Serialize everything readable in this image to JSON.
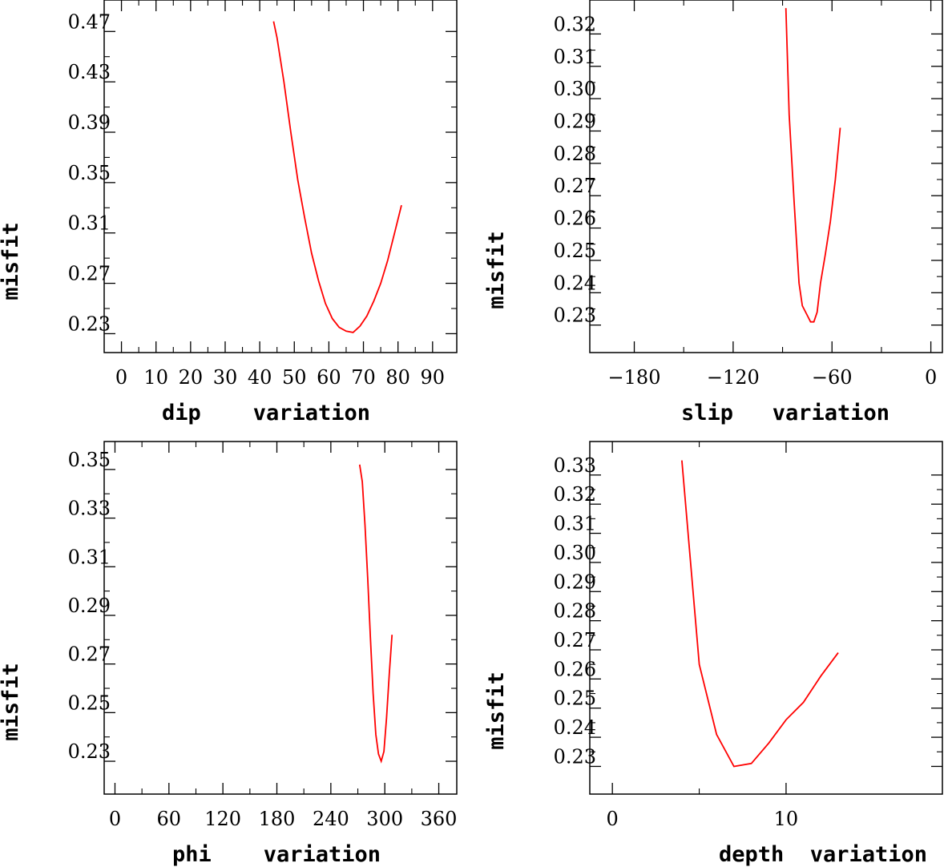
{
  "chart_data": [
    {
      "type": "line",
      "xlabel": "dip    variation",
      "ylabel": "misfit",
      "xlim": [
        -5,
        97
      ],
      "ylim": [
        0.215,
        0.495
      ],
      "x_ticks": [
        0,
        10,
        20,
        30,
        40,
        50,
        60,
        70,
        80,
        90
      ],
      "y_ticks": [
        0.23,
        0.27,
        0.31,
        0.35,
        0.39,
        0.43,
        0.47
      ],
      "y_tick_labels": [
        "0.23",
        "0.27",
        "0.31",
        "0.35",
        "0.39",
        "0.43",
        "0.47"
      ],
      "series": [
        {
          "color": "#ff0000",
          "x": [
            44,
            45,
            47,
            49,
            51,
            53,
            55,
            57,
            59,
            61,
            63,
            65,
            67,
            69,
            71,
            73,
            75,
            77,
            79,
            81
          ],
          "y": [
            0.478,
            0.465,
            0.43,
            0.39,
            0.352,
            0.322,
            0.294,
            0.272,
            0.254,
            0.242,
            0.235,
            0.232,
            0.231,
            0.236,
            0.244,
            0.256,
            0.27,
            0.288,
            0.31,
            0.332
          ]
        }
      ]
    },
    {
      "type": "line",
      "xlabel": "slip   variation",
      "ylabel": "misfit",
      "xlim": [
        -207,
        7
      ],
      "ylim": [
        0.2215,
        0.3305
      ],
      "x_ticks": [
        -180,
        -120,
        -60,
        0
      ],
      "x_tick_labels": [
        "−180",
        "−120",
        "−60",
        "0"
      ],
      "y_ticks": [
        0.23,
        0.24,
        0.25,
        0.26,
        0.27,
        0.28,
        0.29,
        0.3,
        0.31,
        0.32
      ],
      "y_tick_labels": [
        "0.23",
        "0.24",
        "0.25",
        "0.26",
        "0.27",
        "0.28",
        "0.29",
        "0.30",
        "0.31",
        "0.32"
      ],
      "series": [
        {
          "color": "#ff0000",
          "x": [
            -88,
            -86,
            -83,
            -80,
            -78,
            -75,
            -73,
            -71,
            -69,
            -67,
            -64,
            -61,
            -58,
            -55
          ],
          "y": [
            0.328,
            0.295,
            0.268,
            0.243,
            0.236,
            0.233,
            0.231,
            0.231,
            0.234,
            0.243,
            0.252,
            0.262,
            0.275,
            0.291
          ]
        }
      ]
    },
    {
      "type": "line",
      "xlabel": "phi    variation",
      "ylabel": "misfit",
      "xlim": [
        -12,
        380
      ],
      "ylim": [
        0.2165,
        0.3615
      ],
      "x_ticks": [
        0,
        60,
        120,
        180,
        240,
        300,
        360
      ],
      "y_ticks": [
        0.23,
        0.25,
        0.27,
        0.29,
        0.31,
        0.33,
        0.35
      ],
      "y_tick_labels": [
        "0.23",
        "0.25",
        "0.27",
        "0.29",
        "0.31",
        "0.33",
        "0.35"
      ],
      "series": [
        {
          "color": "#ff0000",
          "x": [
            272,
            275,
            278,
            281,
            284,
            287,
            290,
            293,
            296,
            299,
            302,
            305,
            308
          ],
          "y": [
            0.352,
            0.345,
            0.327,
            0.305,
            0.281,
            0.258,
            0.241,
            0.233,
            0.23,
            0.234,
            0.248,
            0.266,
            0.282
          ]
        }
      ]
    },
    {
      "type": "line",
      "xlabel": "depth  variation",
      "ylabel": "misfit",
      "xlim": [
        -1.3,
        19
      ],
      "ylim": [
        0.2205,
        0.3415
      ],
      "x_ticks": [
        0,
        10
      ],
      "y_ticks": [
        0.23,
        0.24,
        0.25,
        0.26,
        0.27,
        0.28,
        0.29,
        0.3,
        0.31,
        0.32,
        0.33
      ],
      "y_tick_labels": [
        "0.23",
        "0.24",
        "0.25",
        "0.26",
        "0.27",
        "0.28",
        "0.29",
        "0.30",
        "0.31",
        "0.32",
        "0.33"
      ],
      "series": [
        {
          "color": "#ff0000",
          "x": [
            4,
            5,
            6,
            7,
            8,
            9,
            10,
            11,
            12,
            13
          ],
          "y": [
            0.335,
            0.265,
            0.241,
            0.23,
            0.231,
            0.238,
            0.246,
            0.252,
            0.261,
            0.269
          ]
        }
      ]
    }
  ]
}
